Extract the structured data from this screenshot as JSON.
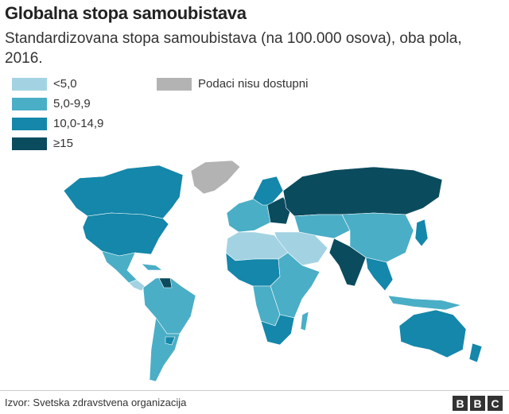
{
  "header": {
    "title": "Globalna stopa samoubistava",
    "subtitle": "Standardizovana stopa samoubistava (na 100.000 osova), oba pola, 2016."
  },
  "legend": {
    "items": [
      {
        "label": "<5,0",
        "color": "#a3d3e2"
      },
      {
        "label": "5,0-9,9",
        "color": "#4aaec6"
      },
      {
        "label": "10,0-14,9",
        "color": "#1487aa"
      },
      {
        "label": "≥15",
        "color": "#0b4b5e"
      },
      {
        "label": "Podaci nisu dostupni",
        "color": "#b3b3b3"
      }
    ]
  },
  "footer": {
    "source": "Izvor: Svetska zdravstvena organizacija",
    "logo": [
      "B",
      "B",
      "C"
    ]
  }
}
